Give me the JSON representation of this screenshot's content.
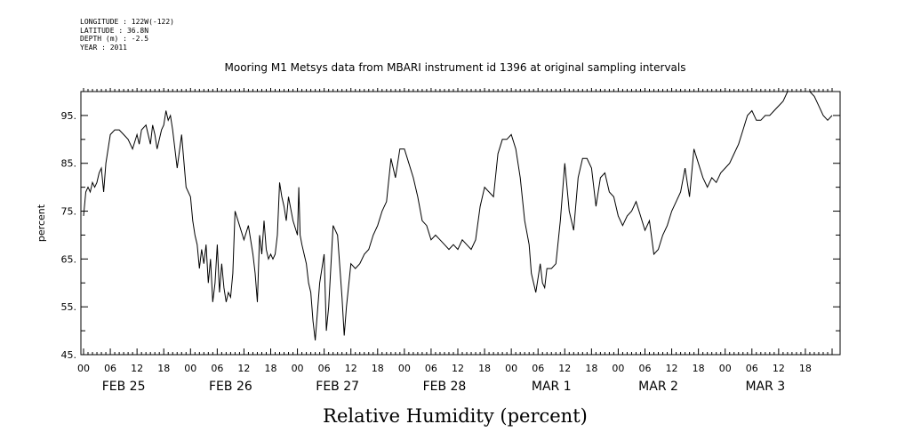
{
  "metadata": {
    "longitude": "LONGITUDE : 122W(-122)",
    "latitude": "LATITUDE : 36.8N",
    "depth": "DEPTH (m) : -2.5",
    "year": "YEAR : 2011"
  },
  "chart_data": {
    "type": "line",
    "title": "Mooring M1 Metsys data from MBARI instrument id 1396 at original sampling intervals",
    "xlabel": "Relative Humidity (percent)",
    "ylabel": "percent",
    "ylim": [
      45,
      100
    ],
    "yticks": [
      45,
      55,
      65,
      75,
      85,
      95
    ],
    "ytick_labels": [
      "45.",
      "55.",
      "65.",
      "75.",
      "85.",
      "95."
    ],
    "xlim_hours": [
      0,
      168
    ],
    "hour_ticks": [
      "00",
      "06",
      "12",
      "18"
    ],
    "day_labels": [
      "FEB 25",
      "FEB 26",
      "FEB 27",
      "FEB 28",
      "MAR  1",
      "MAR  2",
      "MAR  3"
    ],
    "grid": false,
    "series": [
      {
        "x": [
          0,
          0.5,
          1,
          1.5,
          2,
          2.5,
          3,
          3.5,
          4,
          4.5,
          5,
          6,
          7,
          8,
          9,
          10,
          11,
          12,
          12.5,
          13,
          14,
          15,
          15.5,
          16,
          16.5,
          17,
          17.5,
          18,
          18.5,
          19,
          19.5,
          20,
          21,
          22,
          23,
          24,
          24.5,
          25,
          25.5,
          26,
          26.5,
          27,
          27.5,
          28,
          28.5,
          29,
          29.5,
          30,
          30.5,
          31,
          31.5,
          32,
          32.5,
          33,
          33.5,
          34,
          35,
          36,
          37,
          38,
          38.5,
          39,
          39.5,
          40,
          40.5,
          41,
          41.5,
          42,
          42.5,
          43,
          43.5,
          44,
          44.5,
          45,
          45.5,
          46,
          47,
          48,
          48.3,
          48.6,
          49,
          49.5,
          50,
          50.5,
          51,
          51.5,
          52,
          53,
          54,
          54.5,
          55,
          56,
          57,
          58,
          58.5,
          59,
          60,
          61,
          62,
          63,
          64,
          65,
          66,
          67,
          68,
          69,
          70,
          71,
          72,
          73,
          74,
          75,
          76,
          77,
          78,
          79,
          80,
          81,
          82,
          83,
          84,
          85,
          86,
          87,
          88,
          89,
          90,
          91,
          92,
          93,
          94,
          95,
          96,
          97,
          98,
          99,
          100,
          100.5,
          101,
          101.5,
          102,
          102.5,
          103,
          103.5,
          104,
          105,
          106,
          107,
          108,
          109,
          110,
          111,
          112,
          113,
          114,
          115,
          116,
          117,
          118,
          119,
          120,
          121,
          122,
          123,
          124,
          125,
          126,
          127,
          128,
          129,
          130,
          131,
          132,
          133,
          134,
          135,
          136,
          137,
          138,
          139,
          140,
          141,
          142,
          143,
          144,
          145,
          146,
          147,
          148,
          149,
          150,
          151,
          152,
          153,
          154,
          155,
          156,
          157,
          158,
          159,
          160,
          161,
          162,
          163,
          164,
          165,
          166,
          167,
          168
        ],
        "y": [
          74,
          79,
          80,
          79,
          81,
          80,
          81,
          83,
          84,
          79,
          85,
          91,
          92,
          92,
          91,
          90,
          88,
          91,
          89,
          92,
          93,
          89,
          93,
          91,
          88,
          90,
          92,
          93,
          96,
          94,
          95,
          92,
          84,
          91,
          80,
          78,
          73,
          70,
          68,
          63,
          67,
          64,
          68,
          60,
          65,
          56,
          60,
          68,
          58,
          64,
          59,
          56,
          58,
          57,
          62,
          75,
          72,
          69,
          72,
          66,
          62,
          56,
          70,
          66,
          73,
          67,
          65,
          66,
          65,
          66,
          70,
          81,
          78,
          76,
          73,
          78,
          73,
          70,
          80,
          70,
          68,
          66,
          64,
          60,
          58,
          52,
          48,
          60,
          66,
          50,
          55,
          72,
          70,
          57,
          49,
          55,
          64,
          63,
          64,
          66,
          67,
          70,
          72,
          75,
          77,
          86,
          82,
          88,
          88,
          85,
          82,
          78,
          73,
          72,
          69,
          70,
          69,
          68,
          67,
          68,
          67,
          69,
          68,
          67,
          69,
          76,
          80,
          79,
          78,
          87,
          90,
          90,
          91,
          88,
          82,
          73,
          68,
          62,
          60,
          58,
          61,
          64,
          60,
          59,
          63,
          63,
          64,
          73,
          85,
          75,
          71,
          82,
          86,
          86,
          84,
          76,
          82,
          83,
          79,
          78,
          74,
          72,
          74,
          75,
          77,
          74,
          71,
          73,
          66,
          67,
          70,
          72,
          75,
          77,
          79,
          84,
          78,
          88,
          85,
          82,
          80,
          82,
          81,
          83,
          84,
          85,
          87,
          89,
          92,
          95,
          96,
          94,
          94,
          95,
          95,
          96,
          97,
          98,
          100,
          100,
          100,
          100,
          100,
          100,
          99,
          97,
          95,
          94,
          95
        ]
      }
    ]
  }
}
